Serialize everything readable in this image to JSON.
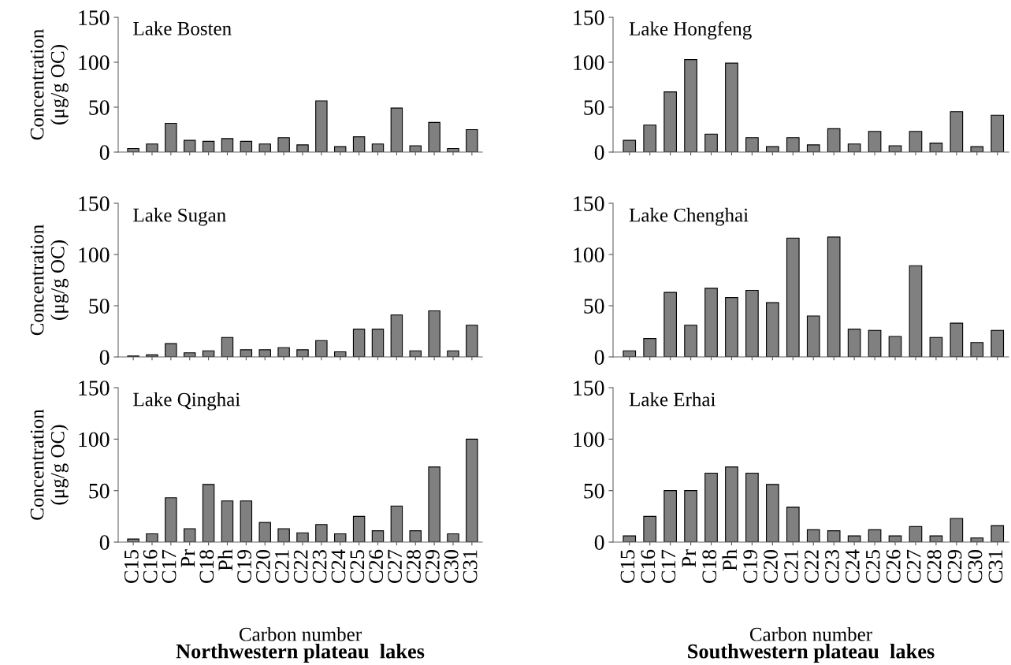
{
  "chart_data": [
    {
      "type": "bar",
      "title": "Lake Bosten",
      "ylabel": "Concentration\n(μg/g OC)",
      "categories": [
        null,
        null,
        null,
        null,
        null,
        null,
        null,
        null,
        null,
        null,
        null,
        null,
        null,
        null,
        null,
        null,
        null,
        null,
        null
      ],
      "values": [
        4,
        9,
        32,
        13,
        12,
        15,
        12,
        9,
        16,
        8,
        57,
        6,
        17,
        9,
        49,
        7,
        33,
        4,
        25
      ],
      "color": "#808080",
      "ylim": [
        0,
        150
      ],
      "yticks": [
        0,
        50,
        100,
        150
      ],
      "tick_labels": "y"
    },
    {
      "type": "bar",
      "title": "Lake Hongfeng",
      "categories": [
        null,
        null,
        null,
        null,
        null,
        null,
        null,
        null,
        null,
        null,
        null,
        null,
        null,
        null,
        null,
        null,
        null,
        null,
        null
      ],
      "values": [
        13,
        30,
        67,
        103,
        20,
        99,
        16,
        6,
        16,
        8,
        26,
        9,
        23,
        7,
        23,
        10,
        45,
        6,
        41
      ],
      "color": "#808080",
      "ylim": [
        0,
        150
      ],
      "yticks": [
        0,
        50,
        100,
        150
      ],
      "tick_labels": "y"
    },
    {
      "type": "bar",
      "title": "Lake Sugan",
      "ylabel": "Concentration\n(μg/g OC)",
      "categories": [
        null,
        null,
        null,
        null,
        null,
        null,
        null,
        null,
        null,
        null,
        null,
        null,
        null,
        null,
        null,
        null,
        null,
        null,
        null
      ],
      "values": [
        1,
        2,
        13,
        4,
        6,
        19,
        7,
        7,
        9,
        7,
        16,
        5,
        27,
        27,
        41,
        6,
        45,
        6,
        31
      ],
      "color": "#808080",
      "ylim": [
        0,
        150
      ],
      "yticks": [
        0,
        50,
        100,
        150
      ],
      "tick_labels": "y"
    },
    {
      "type": "bar",
      "title": "Lake Chenghai",
      "categories": [
        null,
        null,
        null,
        null,
        null,
        null,
        null,
        null,
        null,
        null,
        null,
        null,
        null,
        null,
        null,
        null,
        null,
        null,
        null
      ],
      "values": [
        6,
        18,
        63,
        31,
        67,
        58,
        65,
        53,
        116,
        40,
        117,
        27,
        26,
        20,
        89,
        19,
        33,
        14,
        26
      ],
      "color": "#808080",
      "ylim": [
        0,
        150
      ],
      "yticks": [
        0,
        50,
        100,
        150
      ],
      "tick_labels": "y"
    },
    {
      "type": "bar",
      "title": "Lake Qinghai",
      "ylabel": "Concentration\n(μg/g OC)",
      "xlabel": "Carbon number",
      "annotations": [
        "Northwestern plateau  lakes"
      ],
      "categories": [
        "C15",
        "C16",
        "C17",
        "Pr",
        "C18",
        "Ph",
        "C19",
        "C20",
        "C21",
        "C22",
        "C23",
        "C24",
        "C25",
        "C26",
        "C27",
        "C28",
        "C29",
        "C30",
        "C31"
      ],
      "values": [
        3,
        8,
        43,
        13,
        56,
        40,
        40,
        19,
        13,
        9,
        17,
        8,
        25,
        11,
        35,
        11,
        73,
        8,
        100
      ],
      "color": "#808080",
      "ylim": [
        0,
        150
      ],
      "yticks": [
        0,
        50,
        100,
        150
      ]
    },
    {
      "type": "bar",
      "title": "Lake Erhai",
      "xlabel": "Carbon number",
      "annotations": [
        "Southwestern plateau  lakes"
      ],
      "categories": [
        "C15",
        "C16",
        "C17",
        "Pr",
        "C18",
        "Ph",
        "C19",
        "C20",
        "C21",
        "C22",
        "C23",
        "C24",
        "C25",
        "C26",
        "C27",
        "C28",
        "C29",
        "C30",
        "C31"
      ],
      "values": [
        6,
        25,
        50,
        50,
        67,
        73,
        67,
        56,
        34,
        12,
        11,
        6,
        12,
        6,
        15,
        6,
        23,
        4,
        16
      ],
      "color": "#808080",
      "ylim": [
        0,
        150
      ],
      "yticks": [
        0,
        50,
        100,
        150
      ]
    }
  ]
}
